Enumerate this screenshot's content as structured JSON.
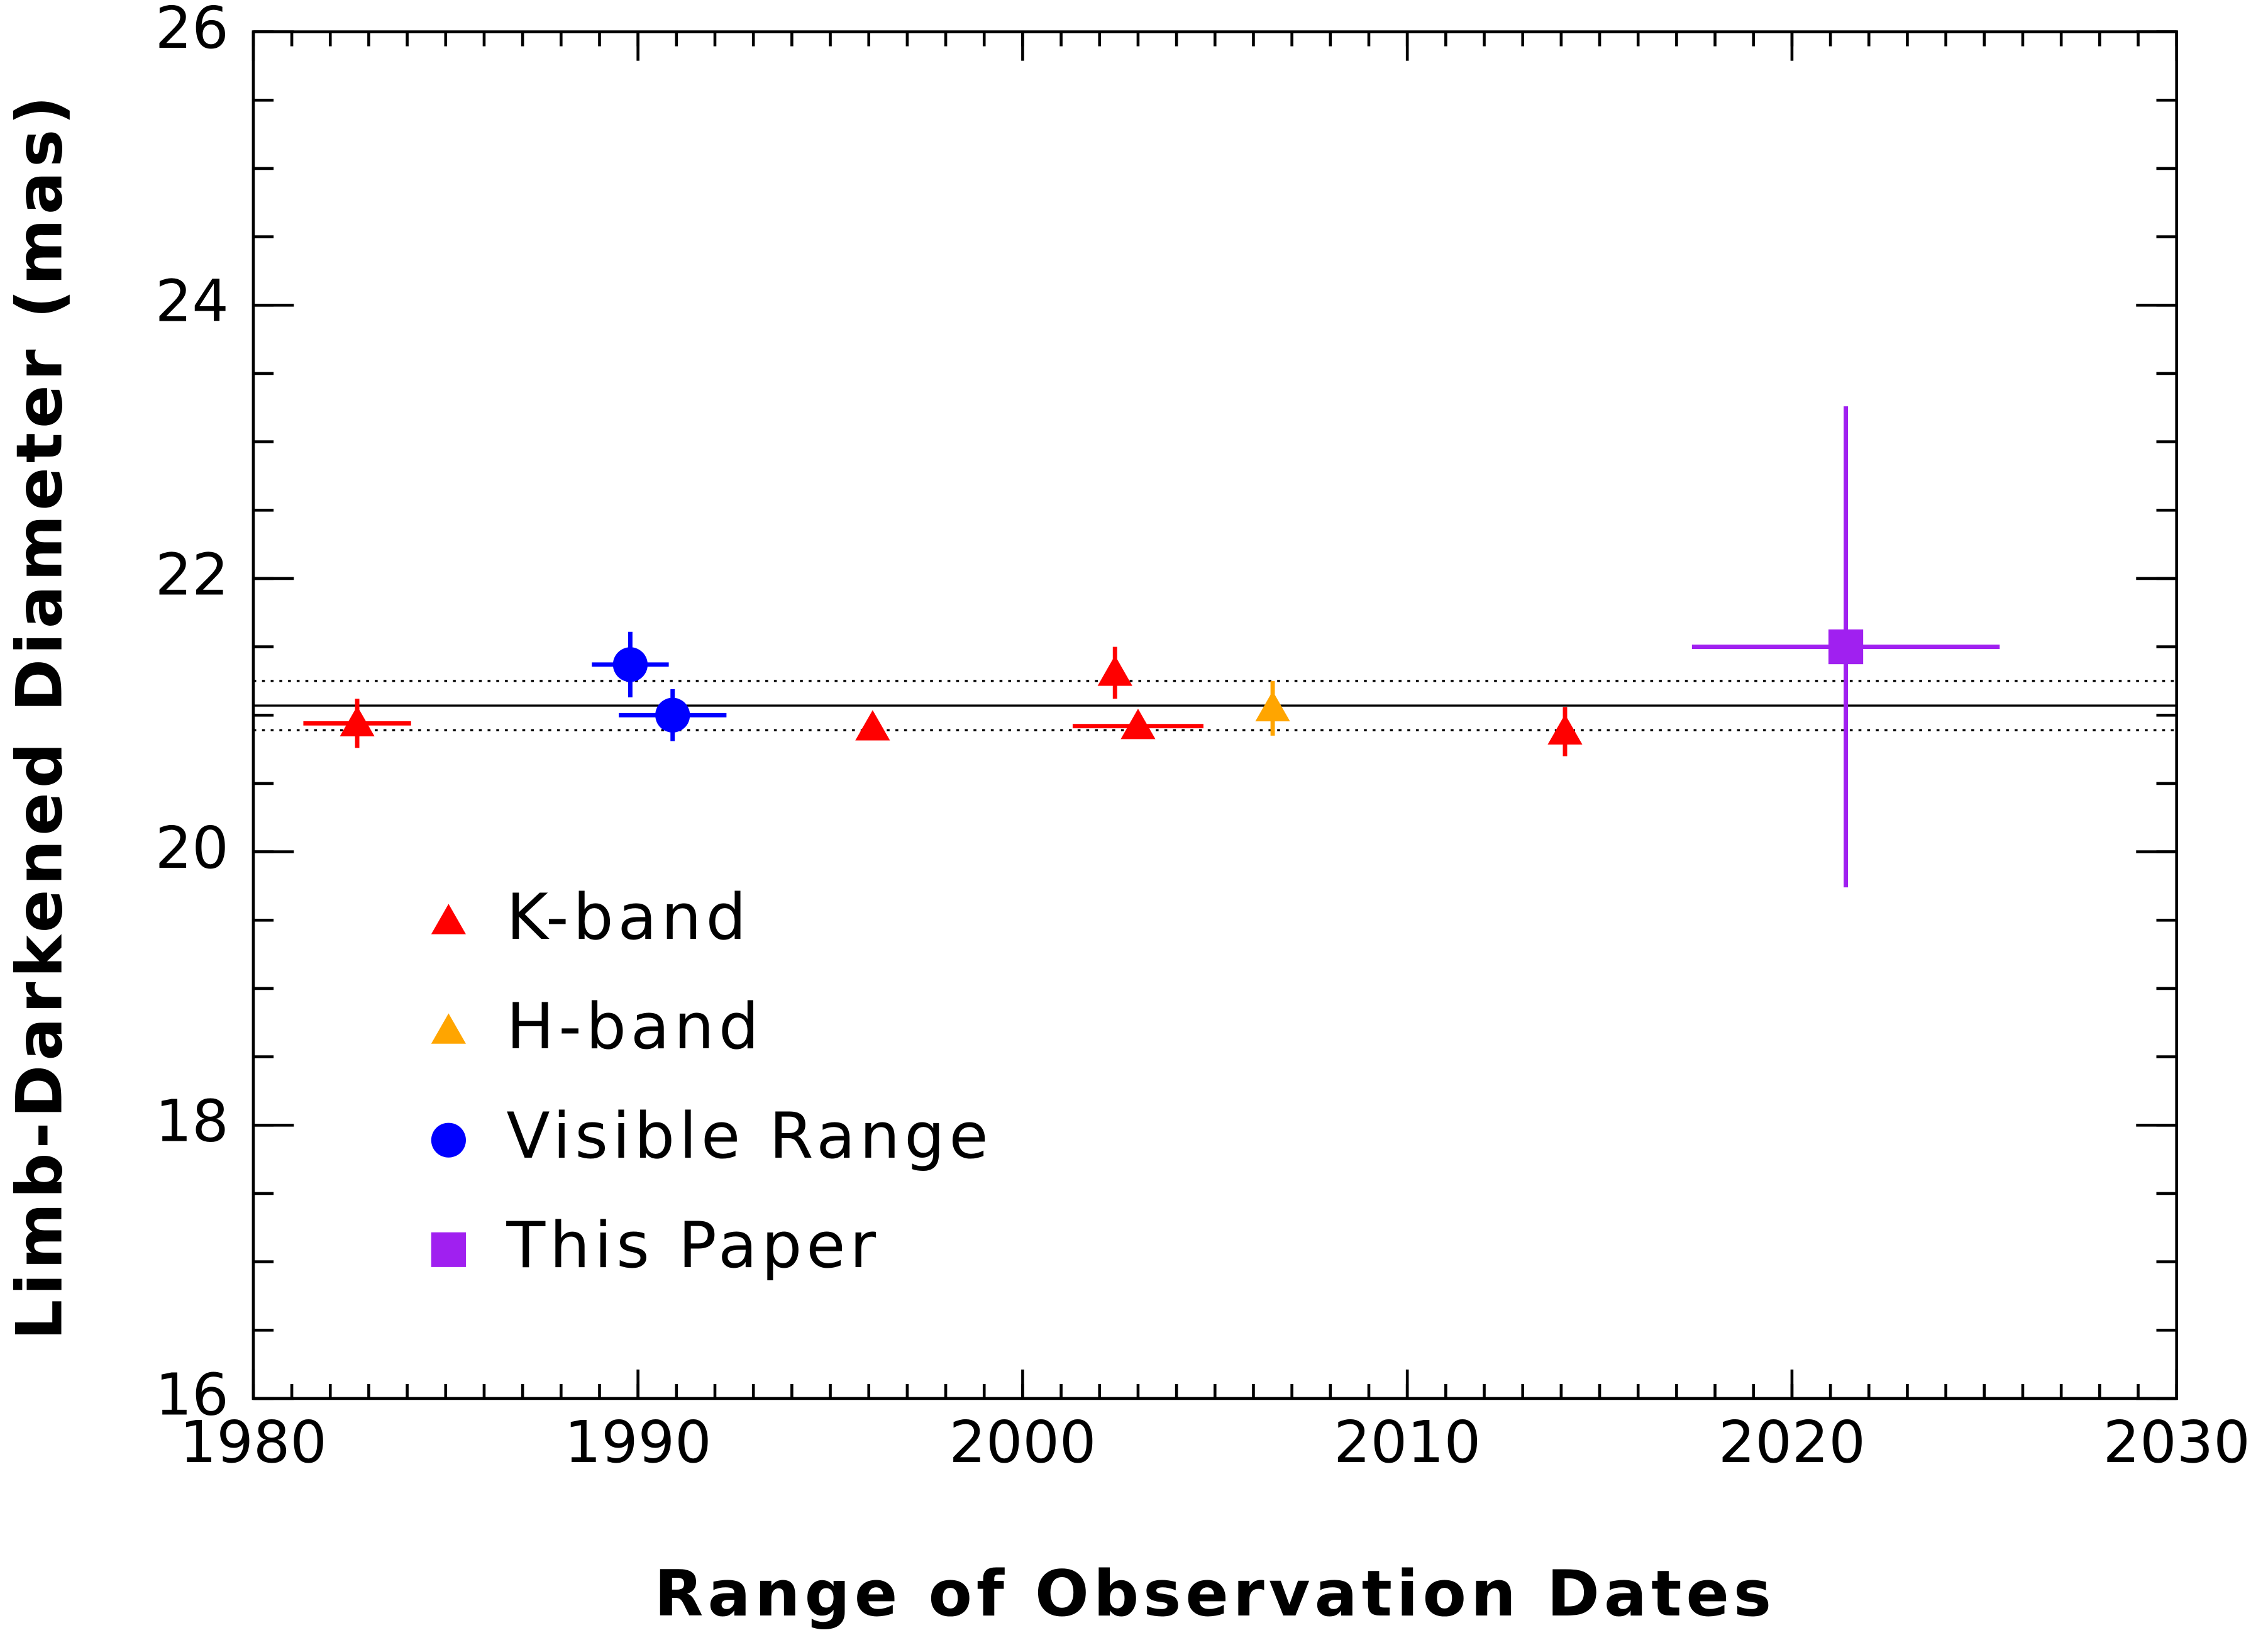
{
  "chart_data": {
    "type": "scatter",
    "x_label": "Range of Observation Dates",
    "y_label": "Limb-Darkened Diameter (mas)",
    "xlim": [
      1980,
      2030
    ],
    "ylim": [
      16,
      26
    ],
    "xticks": [
      1980,
      1990,
      2000,
      2010,
      2020,
      2030
    ],
    "yticks": [
      16,
      18,
      20,
      22,
      24,
      26
    ],
    "x_minor_step": 1,
    "y_minor_step": 0.5,
    "reference_lines": [
      {
        "value": 21.07,
        "style": "solid"
      },
      {
        "value": 21.25,
        "style": "dotted"
      },
      {
        "value": 20.89,
        "style": "dotted"
      }
    ],
    "series": [
      {
        "name": "K-band",
        "color": "#ff0000",
        "marker": "triangle",
        "x": [
          1982.7,
          1996.1,
          2002.4,
          2003.0,
          2014.1
        ],
        "values": [
          20.94,
          20.91,
          21.31,
          20.92,
          20.88
        ],
        "xerr": [
          1.4,
          null,
          null,
          1.7,
          null
        ],
        "yerr": [
          0.18,
          null,
          0.19,
          null,
          0.18
        ]
      },
      {
        "name": "H-band",
        "color": "#ffa500",
        "marker": "triangle",
        "x": [
          2006.5
        ],
        "values": [
          21.05
        ],
        "xerr": [
          null
        ],
        "yerr": [
          0.2
        ]
      },
      {
        "name": "Visible Range",
        "color": "#0000ff",
        "marker": "circle",
        "x": [
          1989.8,
          1990.9
        ],
        "values": [
          21.37,
          21.0
        ],
        "xerr": [
          1.0,
          1.4
        ],
        "yerr": [
          0.24,
          0.19
        ]
      },
      {
        "name": "This Paper",
        "color": "#a020f0",
        "marker": "square",
        "x": [
          2021.4
        ],
        "values": [
          21.5
        ],
        "xerr": [
          4.0
        ],
        "yerr": [
          1.76
        ]
      }
    ]
  }
}
